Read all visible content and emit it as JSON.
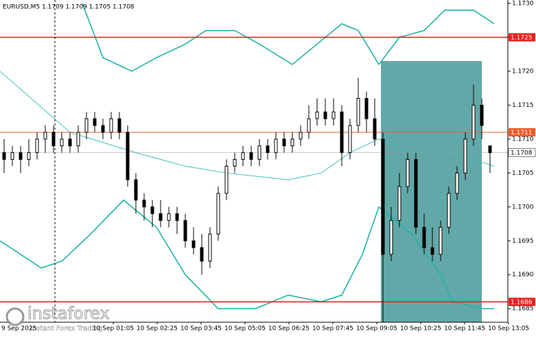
{
  "chart_data": {
    "type": "candlestick",
    "header": "EURUSD,M5  1.1709 1.1709 1.1705 1.1708",
    "ylim": [
      1.1683,
      1.17305
    ],
    "yticks": [
      1.1685,
      {
        "value": 1.169,
        "label": "1.1690"
      },
      1.1695,
      {
        "value": 1.17,
        "label": "1.1700"
      },
      1.1705,
      {
        "value": 1.171,
        "label": "1.1710"
      },
      1.1715,
      {
        "value": 1.172,
        "label": "1.1720"
      },
      1.1725,
      {
        "value": 1.173,
        "label": "1.1730"
      }
    ],
    "xlabels": [
      "9 Sep 2025",
      "10 Sep 01:05",
      "10 Sep 02:25",
      "10 Sep 03:45",
      "10 Sep 05:05",
      "10 Sep 06:25",
      "10 Sep 07:45",
      "10 Sep 09:05",
      "10 Sep 10:25",
      "10 Sep 11:45",
      "10 Sep 13:05"
    ],
    "candle_color": "#000000",
    "candles": [
      [
        1.1708,
        1.171,
        1.1705,
        1.1707
      ],
      [
        1.1707,
        1.1709,
        1.1706,
        1.1708
      ],
      [
        1.1708,
        1.1709,
        1.1705,
        1.1707
      ],
      [
        1.1707,
        1.171,
        1.1706,
        1.1708
      ],
      [
        1.1708,
        1.1711,
        1.1707,
        1.171
      ],
      [
        1.171,
        1.1712,
        1.1708,
        1.1711
      ],
      [
        1.1711,
        1.1712,
        1.1708,
        1.1709
      ],
      [
        1.1709,
        1.1711,
        1.1708,
        1.171
      ],
      [
        1.171,
        1.1711,
        1.1708,
        1.1709
      ],
      [
        1.1709,
        1.1712,
        1.1708,
        1.1711
      ],
      [
        1.1711,
        1.1714,
        1.171,
        1.1713
      ],
      [
        1.1713,
        1.1714,
        1.1711,
        1.1712
      ],
      [
        1.1712,
        1.1713,
        1.171,
        1.1711
      ],
      [
        1.1711,
        1.1714,
        1.171,
        1.1713
      ],
      [
        1.1713,
        1.1714,
        1.171,
        1.1711
      ],
      [
        1.1711,
        1.1712,
        1.1703,
        1.1704
      ],
      [
        1.1704,
        1.1705,
        1.1699,
        1.1701
      ],
      [
        1.1701,
        1.1702,
        1.1698,
        1.17
      ],
      [
        1.17,
        1.1701,
        1.1697,
        1.1699
      ],
      [
        1.1699,
        1.1701,
        1.1697,
        1.1698
      ],
      [
        1.1698,
        1.17,
        1.1697,
        1.1699
      ],
      [
        1.1699,
        1.17,
        1.1696,
        1.1698
      ],
      [
        1.1698,
        1.1699,
        1.1694,
        1.1695
      ],
      [
        1.1695,
        1.1697,
        1.1693,
        1.1694
      ],
      [
        1.1694,
        1.1696,
        1.169,
        1.1692
      ],
      [
        1.1692,
        1.1697,
        1.1691,
        1.1696
      ],
      [
        1.1696,
        1.1703,
        1.1695,
        1.1702
      ],
      [
        1.1702,
        1.1707,
        1.1701,
        1.1706
      ],
      [
        1.1706,
        1.1708,
        1.1705,
        1.1707
      ],
      [
        1.1707,
        1.1709,
        1.1706,
        1.1708
      ],
      [
        1.1708,
        1.1709,
        1.1706,
        1.1707
      ],
      [
        1.1707,
        1.171,
        1.1706,
        1.1709
      ],
      [
        1.1709,
        1.171,
        1.1707,
        1.1708
      ],
      [
        1.1708,
        1.1711,
        1.1707,
        1.171
      ],
      [
        1.171,
        1.1711,
        1.1708,
        1.1709
      ],
      [
        1.1709,
        1.1711,
        1.1708,
        1.171
      ],
      [
        1.171,
        1.1712,
        1.1709,
        1.1711
      ],
      [
        1.1711,
        1.1715,
        1.171,
        1.1713
      ],
      [
        1.1713,
        1.1716,
        1.1712,
        1.1714
      ],
      [
        1.1714,
        1.1716,
        1.1712,
        1.1713
      ],
      [
        1.1713,
        1.1716,
        1.1712,
        1.1714
      ],
      [
        1.1714,
        1.1715,
        1.1706,
        1.1708
      ],
      [
        1.1708,
        1.1713,
        1.1707,
        1.1712
      ],
      [
        1.1712,
        1.1719,
        1.1711,
        1.1716
      ],
      [
        1.1716,
        1.1717,
        1.1711,
        1.1713
      ],
      [
        1.1713,
        1.1716,
        1.1709,
        1.171
      ],
      [
        1.171,
        1.1711,
        1.1683,
        1.1693
      ],
      [
        1.1693,
        1.17,
        1.1692,
        1.1698
      ],
      [
        1.1698,
        1.1705,
        1.1697,
        1.1703
      ],
      [
        1.1703,
        1.1708,
        1.1702,
        1.1707
      ],
      [
        1.1707,
        1.1708,
        1.1696,
        1.1697
      ],
      [
        1.1697,
        1.1699,
        1.1693,
        1.1694
      ],
      [
        1.1694,
        1.1697,
        1.1692,
        1.1693
      ],
      [
        1.1693,
        1.1698,
        1.1692,
        1.1697
      ],
      [
        1.1697,
        1.1703,
        1.1696,
        1.1702
      ],
      [
        1.1702,
        1.1706,
        1.1701,
        1.1705
      ],
      [
        1.1705,
        1.1711,
        1.1704,
        1.171
      ],
      [
        1.171,
        1.1718,
        1.1709,
        1.1715
      ],
      [
        1.1715,
        1.1716,
        1.171,
        1.1712
      ],
      [
        1.1709,
        1.1709,
        1.1705,
        1.1708
      ]
    ],
    "bands": [
      {
        "color": "#20b2aa",
        "x": [
          9.5,
          12,
          15.5,
          18.5,
          22,
          24.5,
          28,
          31,
          35,
          38,
          41,
          43,
          45.5,
          48,
          51,
          53.5,
          57,
          59.5
        ],
        "values": [
          1.173,
          1.1722,
          1.172,
          1.1722,
          1.1724,
          1.1726,
          1.1726,
          1.1724,
          1.1721,
          1.1724,
          1.1727,
          1.1726,
          1.1721,
          1.1725,
          1.1726,
          1.1729,
          1.1729,
          1.1727
        ]
      },
      {
        "color": "#40c0b8",
        "x": [
          -0.5,
          8,
          16,
          22,
          27,
          34.5,
          38.5,
          42,
          45.5,
          49.5,
          54.5,
          59.5
        ],
        "values": [
          1.172,
          1.1711,
          1.1708,
          1.1706,
          1.1705,
          1.1704,
          1.1705,
          1.1708,
          1.171,
          1.1708,
          1.1708,
          1.1706
        ]
      },
      {
        "color": "#20b2aa",
        "x": [
          -0.5,
          4.5,
          7,
          10.5,
          14.5,
          18.5,
          22,
          26,
          30.5,
          34.5,
          38.5,
          41,
          43.5,
          45.5,
          49.5,
          53,
          54.5,
          58,
          59.5
        ],
        "values": [
          1.1695,
          1.1691,
          1.1692,
          1.1696,
          1.1701,
          1.1697,
          1.169,
          1.1685,
          1.1685,
          1.1687,
          1.1686,
          1.1687,
          1.1693,
          1.17,
          1.1696,
          1.169,
          1.1686,
          1.1685,
          1.1685
        ]
      }
    ],
    "zone": {
      "color": "#2f8b8b",
      "x": [
        45.75,
        58
      ],
      "y": [
        1.17215,
        1.1682
      ]
    },
    "levels": [
      {
        "value": 1.1725,
        "color": "#e8221e"
      },
      {
        "value": 1.1711,
        "color": "#f05a28"
      },
      {
        "value": 1.1686,
        "color": "#e8221e"
      },
      {
        "value": 1.1708,
        "color": "#9a9a9a"
      }
    ],
    "watermark": {
      "brand": "instaforex",
      "tagline": "Instant Forex Trading"
    }
  }
}
